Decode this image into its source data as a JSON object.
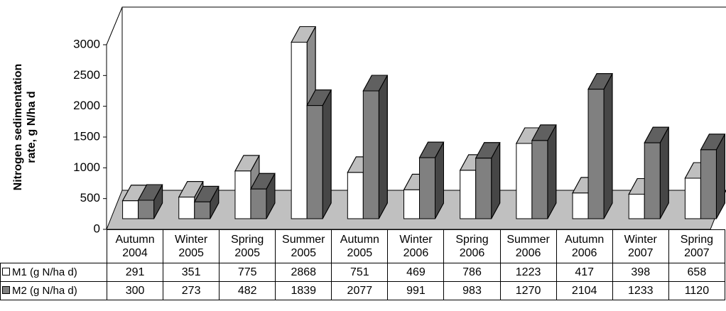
{
  "chart_data": {
    "type": "bar3d",
    "y_label": "Nitrogen sedimentation rate, g N/ha d",
    "categories": [
      "Autumn 2004",
      "Winter 2005",
      "Spring 2005",
      "Summer 2005",
      "Autumn 2005",
      "Winter 2006",
      "Spring 2006",
      "Summer 2006",
      "Autumn 2006",
      "Winter 2007",
      "Spring 2007"
    ],
    "series": [
      {
        "name": "M1 (g N/ha d)",
        "color": "#ffffff",
        "values": [
          291,
          351,
          775,
          2868,
          751,
          469,
          786,
          1223,
          417,
          398,
          658
        ]
      },
      {
        "name": "M2 (g N/ha d)",
        "color": "#808080",
        "values": [
          300,
          273,
          482,
          1839,
          2077,
          991,
          983,
          1270,
          2104,
          1233,
          1120
        ]
      }
    ],
    "ylim": [
      0,
      3000
    ],
    "yticks": [
      0,
      500,
      1000,
      1500,
      2000,
      2500,
      3000
    ]
  }
}
